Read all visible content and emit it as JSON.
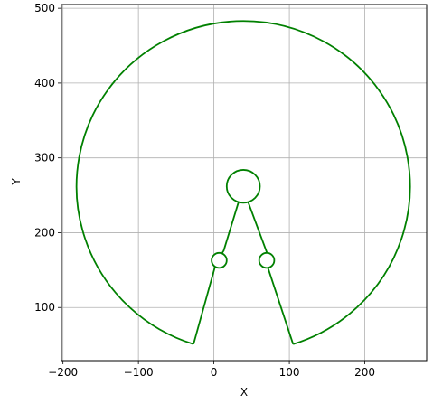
{
  "chart_data": {
    "type": "line",
    "title": "",
    "xlabel": "X",
    "ylabel": "Y",
    "xlim": [
      -202,
      282
    ],
    "ylim": [
      29,
      505
    ],
    "xticks": [
      -200,
      -100,
      0,
      100,
      200
    ],
    "yticks": [
      100,
      200,
      300,
      400,
      500
    ],
    "grid": true,
    "legend": "none",
    "series": [
      {
        "color": "#008000",
        "outline": {
          "big_circle": {
            "center": [
              39,
              262
            ],
            "radius": 221,
            "gap_from": [
              -27,
              51
            ],
            "gap_to": [
              105,
              51
            ]
          },
          "path": [
            [
              105,
              51
            ],
            [
              72,
              152
            ],
            [
              75,
              160
            ],
            [
              70,
              174
            ],
            [
              45,
              242
            ],
            [
              33,
              242
            ],
            [
              13,
              176
            ],
            [
              3,
              160
            ],
            [
              -27,
              51
            ]
          ],
          "small_circles": [
            {
              "center": [
                39,
                262
              ],
              "radius": 22
            },
            {
              "center": [
                70,
                163
              ],
              "radius": 10
            },
            {
              "center": [
                7,
                163
              ],
              "radius": 10
            }
          ]
        }
      }
    ]
  }
}
